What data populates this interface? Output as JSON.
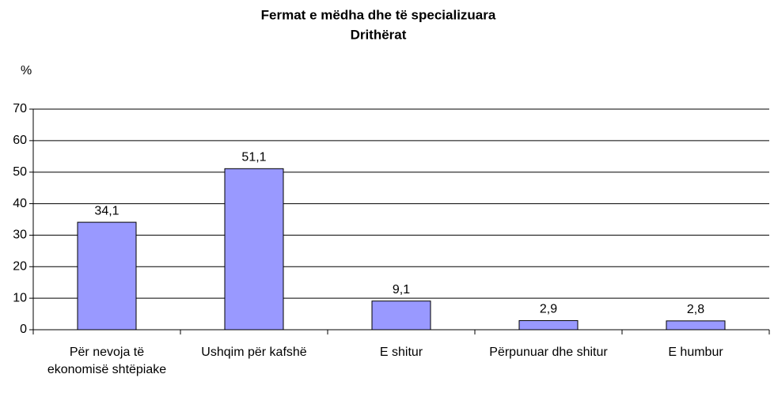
{
  "chart_data": {
    "type": "bar",
    "title": "Fermat e mëdha dhe të specializuara",
    "subtitle": "Drithërat",
    "y_label": "%",
    "categories": [
      "Për nevoja të ekonomisë shtëpiake",
      "Ushqim për kafshë",
      "E shitur",
      "Përpunuar dhe shitur",
      "E humbur"
    ],
    "values": [
      34.1,
      51.1,
      9.1,
      2.9,
      2.8
    ],
    "value_labels": [
      "34,1",
      "51,1",
      "9,1",
      "2,9",
      "2,8"
    ],
    "color": "#9999ff",
    "ylim": [
      0,
      70
    ],
    "yticks": [
      0,
      10,
      20,
      30,
      40,
      50,
      60,
      70
    ],
    "grid": true
  }
}
